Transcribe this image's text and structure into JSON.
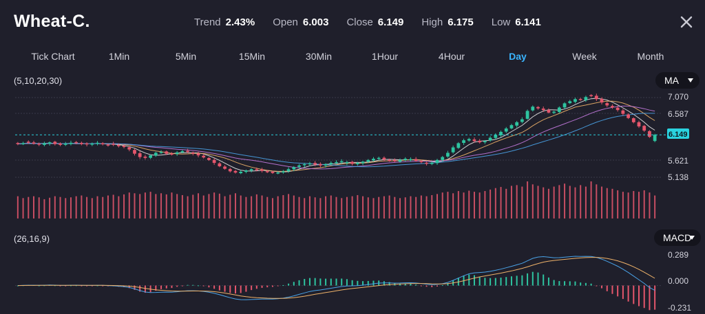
{
  "header": {
    "symbol": "Wheat-C.",
    "stats": [
      {
        "label": "Trend",
        "value": "2.43%"
      },
      {
        "label": "Open",
        "value": "6.003"
      },
      {
        "label": "Close",
        "value": "6.149"
      },
      {
        "label": "High",
        "value": "6.175"
      },
      {
        "label": "Low",
        "value": "6.141"
      }
    ],
    "close_icon": "close-icon"
  },
  "timeframes": {
    "items": [
      "Tick Chart",
      "1Min",
      "5Min",
      "15Min",
      "30Min",
      "1Hour",
      "4Hour",
      "Day",
      "Week",
      "Month"
    ],
    "active": "Day"
  },
  "main_panel": {
    "params": "(5,10,20,30)",
    "indicator": "MA",
    "price_labels": [
      "7.070",
      "6.587",
      "5.621",
      "5.138"
    ],
    "current_price": "6.149"
  },
  "macd_panel": {
    "params": "(26,16,9)",
    "indicator": "MACD",
    "labels": [
      "0.289",
      "0.000",
      "-0.231"
    ]
  },
  "colors": {
    "background": "#1f1f2b",
    "up": "#2ec4a0",
    "down": "#e5566c",
    "accent": "#3ab5ff",
    "ma5": "#e8e8e8",
    "ma10": "#f0b36a",
    "ma20": "#c47adf",
    "ma30": "#4aa3e8"
  },
  "chart_data": {
    "type": "candlestick",
    "price_axis": {
      "min": 5.138,
      "max": 7.07,
      "ticks": [
        7.07,
        6.587,
        5.621,
        5.138
      ]
    },
    "last_close": 6.149,
    "closes": [
      5.93,
      5.95,
      5.96,
      5.94,
      5.92,
      5.95,
      5.97,
      5.93,
      5.91,
      5.94,
      5.96,
      5.95,
      5.93,
      5.92,
      5.94,
      5.96,
      5.93,
      5.9,
      5.91,
      5.88,
      5.86,
      5.8,
      5.7,
      5.62,
      5.6,
      5.66,
      5.72,
      5.74,
      5.7,
      5.68,
      5.73,
      5.76,
      5.74,
      5.7,
      5.66,
      5.61,
      5.55,
      5.48,
      5.4,
      5.34,
      5.28,
      5.25,
      5.27,
      5.3,
      5.33,
      5.31,
      5.29,
      5.26,
      5.24,
      5.25,
      5.28,
      5.33,
      5.38,
      5.42,
      5.45,
      5.47,
      5.44,
      5.42,
      5.45,
      5.48,
      5.5,
      5.52,
      5.5,
      5.46,
      5.48,
      5.51,
      5.55,
      5.58,
      5.6,
      5.56,
      5.54,
      5.52,
      5.55,
      5.58,
      5.57,
      5.53,
      5.5,
      5.46,
      5.48,
      5.55,
      5.62,
      5.72,
      5.85,
      5.95,
      6.02,
      6.05,
      6.0,
      5.97,
      6.0,
      6.08,
      6.15,
      6.22,
      6.3,
      6.38,
      6.45,
      6.52,
      6.72,
      6.82,
      6.78,
      6.74,
      6.68,
      6.7,
      6.8,
      6.9,
      6.95,
      7.0,
      6.98,
      7.05,
      7.07,
      7.0,
      6.92,
      6.85,
      6.8,
      6.74,
      6.65,
      6.55,
      6.45,
      6.35,
      6.25,
      6.1,
      6.15
    ],
    "volume": [
      0.6,
      0.55,
      0.58,
      0.6,
      0.57,
      0.52,
      0.56,
      0.6,
      0.58,
      0.55,
      0.57,
      0.6,
      0.62,
      0.58,
      0.55,
      0.6,
      0.58,
      0.62,
      0.64,
      0.6,
      0.65,
      0.7,
      0.68,
      0.66,
      0.7,
      0.72,
      0.66,
      0.68,
      0.65,
      0.7,
      0.66,
      0.63,
      0.6,
      0.64,
      0.68,
      0.62,
      0.66,
      0.7,
      0.67,
      0.6,
      0.64,
      0.68,
      0.62,
      0.58,
      0.6,
      0.65,
      0.62,
      0.58,
      0.55,
      0.6,
      0.63,
      0.66,
      0.62,
      0.58,
      0.55,
      0.6,
      0.57,
      0.55,
      0.6,
      0.62,
      0.58,
      0.55,
      0.58,
      0.6,
      0.63,
      0.6,
      0.57,
      0.55,
      0.58,
      0.6,
      0.62,
      0.58,
      0.55,
      0.57,
      0.6,
      0.58,
      0.62,
      0.6,
      0.63,
      0.66,
      0.7,
      0.72,
      0.68,
      0.74,
      0.7,
      0.75,
      0.72,
      0.7,
      0.74,
      0.78,
      0.82,
      0.85,
      0.8,
      0.88,
      0.9,
      0.86,
      1.0,
      0.92,
      0.88,
      0.84,
      0.8,
      0.86,
      0.9,
      0.94,
      0.88,
      0.84,
      0.9,
      0.86,
      1.0,
      0.92,
      0.86,
      0.82,
      0.8,
      0.76,
      0.72,
      0.7,
      0.74,
      0.72,
      0.76,
      0.7,
      0.62
    ],
    "macd_axis": {
      "min": -0.231,
      "max": 0.289,
      "ticks": [
        0.289,
        0.0,
        -0.231
      ]
    }
  }
}
